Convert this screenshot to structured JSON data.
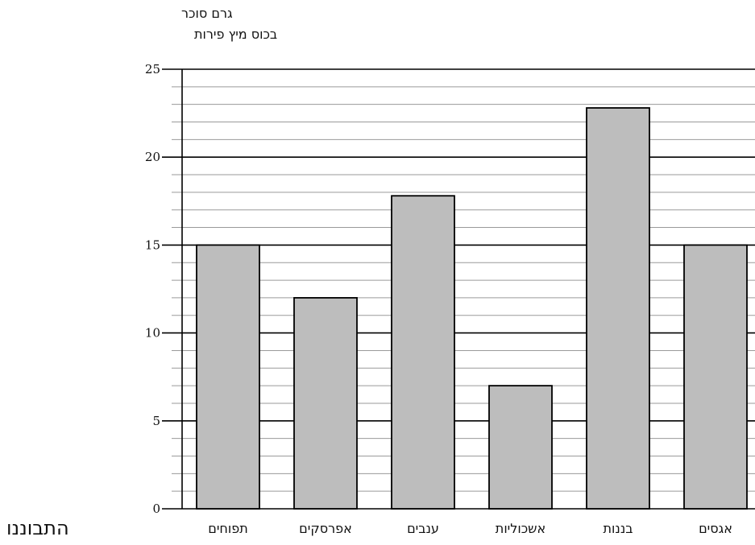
{
  "chart_data": {
    "type": "bar",
    "ylabel_lines": [
      "גרם סוכר",
      "בכוס מיץ פירות"
    ],
    "categories": [
      "תפוחים",
      "אפרסקים",
      "ענבים",
      "אשכוליות",
      "בננות",
      "אגסים"
    ],
    "values": [
      15,
      12,
      17.8,
      7,
      22.8,
      15
    ],
    "ylim": [
      0,
      25
    ],
    "yticks": [
      0,
      5,
      10,
      15,
      20,
      25
    ],
    "minor_step": 1,
    "grid": true,
    "colors": {
      "bar_fill": "#bdbdbd",
      "bar_stroke": "#000000",
      "major_grid": "#000000",
      "minor_grid": "#9a9a9a"
    }
  },
  "footer": {
    "text": "התבוננו"
  }
}
